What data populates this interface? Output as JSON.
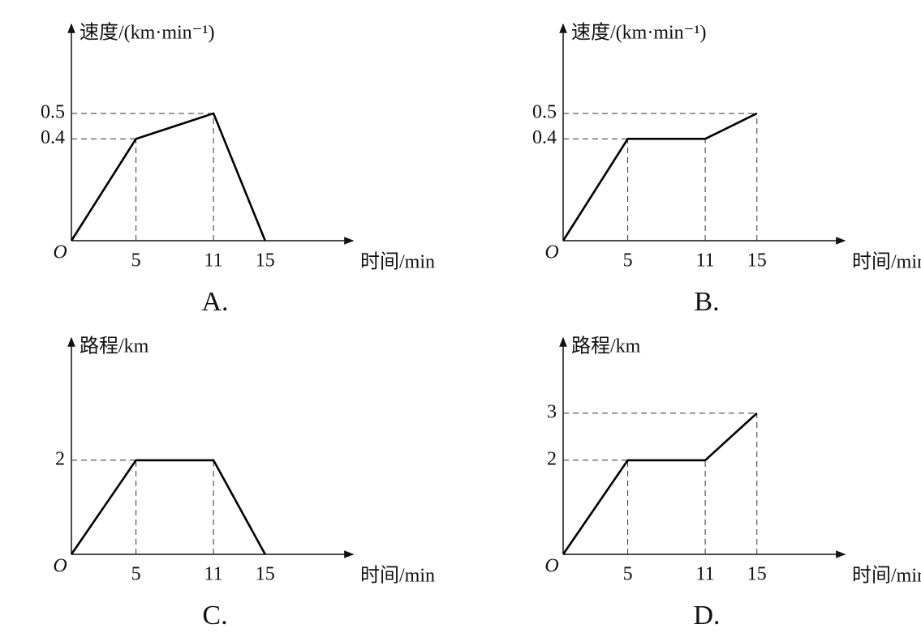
{
  "chart_data": [
    {
      "type": "line",
      "caption": "A.",
      "y_label": "速度/(km·min⁻¹)",
      "x_label": "时间/min",
      "origin_label": "O",
      "x": [
        0,
        5,
        11,
        15
      ],
      "values": [
        0,
        0.4,
        0.5,
        0
      ],
      "color": "#000000",
      "xlim": [
        0,
        21.8
      ],
      "ylim": [
        0,
        0.85
      ],
      "xticks": [
        5,
        11,
        15
      ],
      "yticks": [
        0.4,
        0.5
      ]
    },
    {
      "type": "line",
      "caption": "B.",
      "y_label": "速度/(km·min⁻¹)",
      "x_label": "时间/min",
      "origin_label": "O",
      "x": [
        0,
        5,
        11,
        15
      ],
      "values": [
        0,
        0.4,
        0.4,
        0.5
      ],
      "color": "#000000",
      "xlim": [
        0,
        21.8
      ],
      "ylim": [
        0,
        0.85
      ],
      "xticks": [
        5,
        11,
        15
      ],
      "yticks": [
        0.4,
        0.5
      ]
    },
    {
      "type": "line",
      "caption": "C.",
      "y_label": "路程/km",
      "x_label": "时间/min",
      "origin_label": "O",
      "x": [
        0,
        5,
        11,
        15
      ],
      "values": [
        0,
        2,
        2,
        0
      ],
      "color": "#000000",
      "xlim": [
        0,
        21.8
      ],
      "ylim": [
        0,
        4.6
      ],
      "xticks": [
        5,
        11,
        15
      ],
      "yticks": [
        2
      ]
    },
    {
      "type": "line",
      "caption": "D.",
      "y_label": "路程/km",
      "x_label": "时间/min",
      "origin_label": "O",
      "x": [
        0,
        5,
        11,
        15
      ],
      "values": [
        0,
        2,
        2,
        3
      ],
      "color": "#000000",
      "xlim": [
        0,
        21.8
      ],
      "ylim": [
        0,
        4.6
      ],
      "xticks": [
        5,
        11,
        15
      ],
      "yticks": [
        2,
        3
      ]
    }
  ]
}
